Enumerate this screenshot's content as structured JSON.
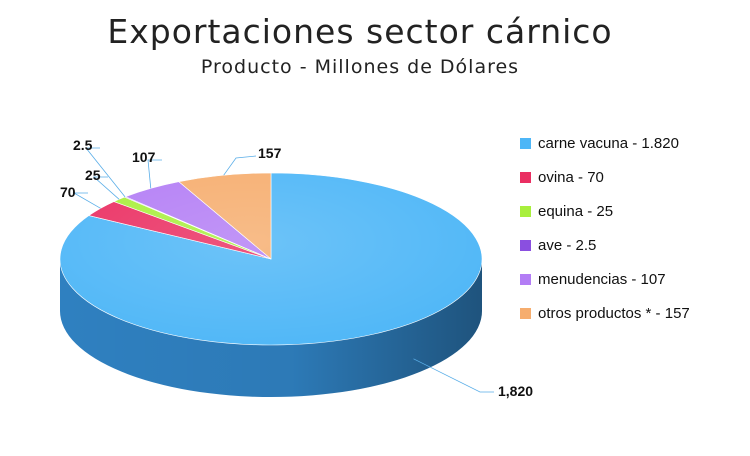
{
  "title": "Exportaciones sector cárnico",
  "subtitle": "Producto  - Millones de Dólares",
  "chart_data": {
    "type": "pie",
    "title": "Exportaciones sector cárnico",
    "subtitle": "Producto  - Millones de Dólares",
    "slices": [
      {
        "name": "carne vacuna",
        "value": 1820,
        "legend": "carne vacuna - 1.820",
        "label": "1,820",
        "color": "#4db6f7",
        "side": "#2f80c0"
      },
      {
        "name": "ovina",
        "value": 70,
        "legend": "ovina - 70",
        "label": "70",
        "color": "#ea2f62",
        "side": "#b01e47"
      },
      {
        "name": "equina",
        "value": 25,
        "legend": "equina - 25",
        "label": "25",
        "color": "#a8ef3d",
        "side": "#78b523"
      },
      {
        "name": "ave",
        "value": 2.5,
        "legend": "ave - 2.5",
        "label": "2.5",
        "color": "#8a4fe0",
        "side": "#5f2fa8"
      },
      {
        "name": "menudencias",
        "value": 107,
        "legend": "menudencias - 107",
        "label": "107",
        "color": "#b37df5",
        "side": "#8656c4"
      },
      {
        "name": "otros productos",
        "value": 157,
        "legend": "otros productos * - 157",
        "label": "157",
        "color": "#f6ad6e",
        "side": "#c8803f"
      }
    ],
    "legend_position": "right"
  }
}
